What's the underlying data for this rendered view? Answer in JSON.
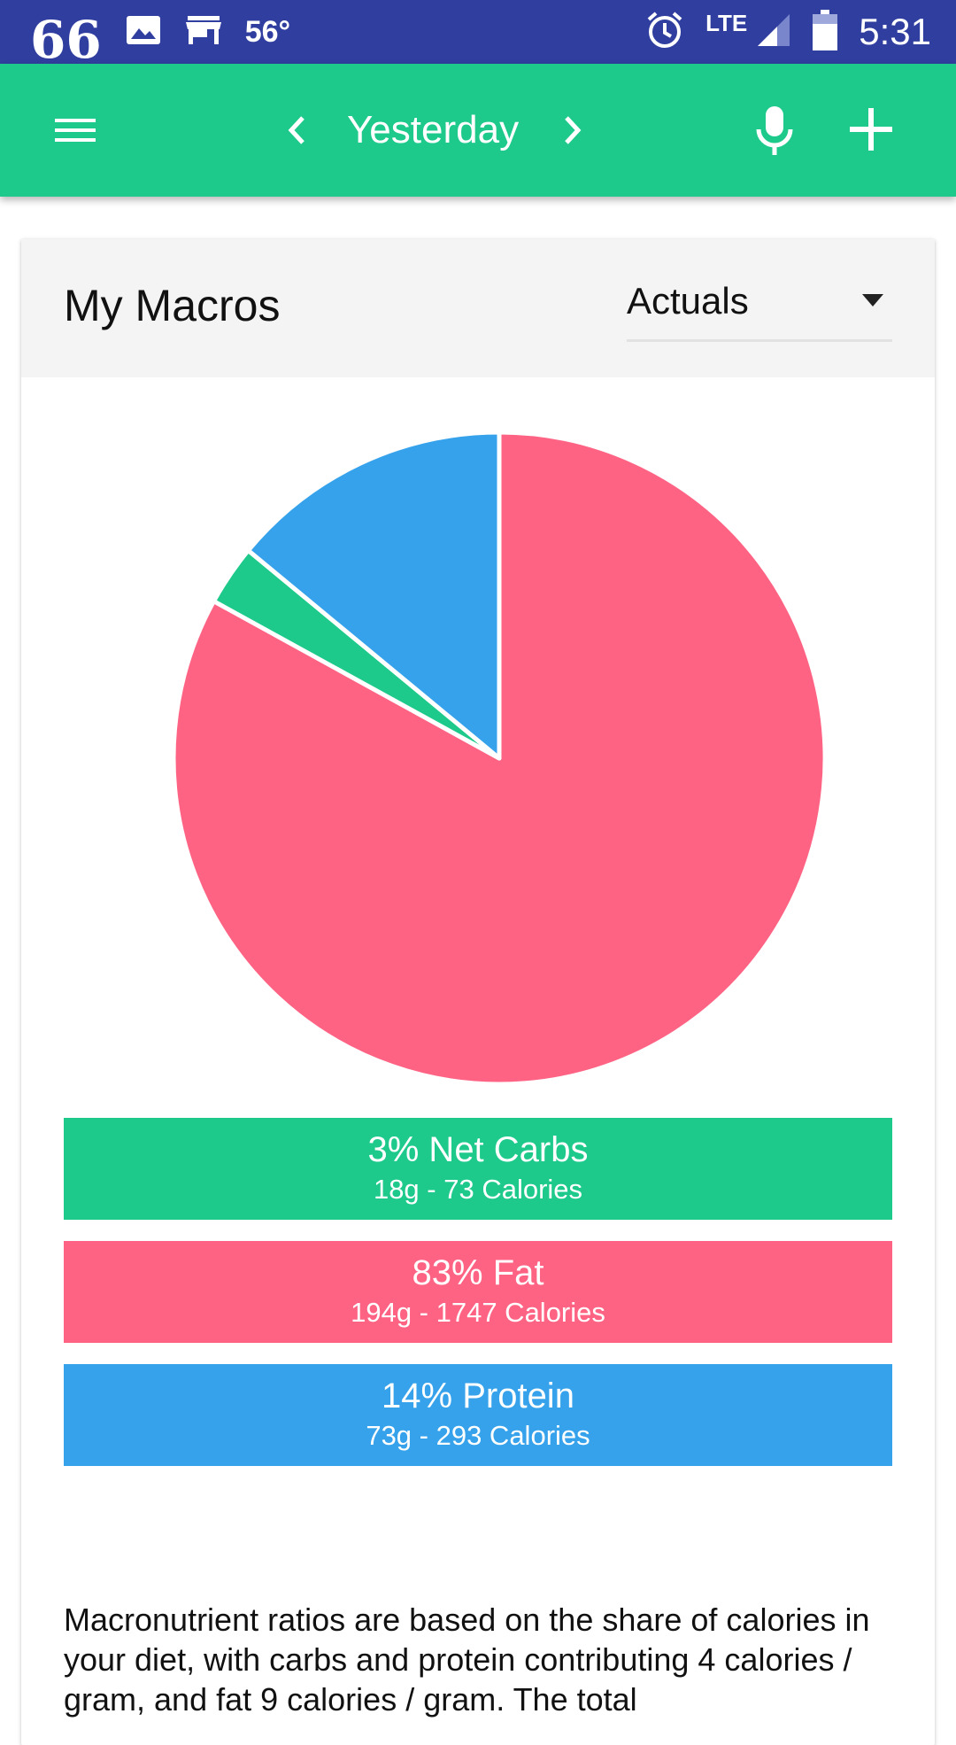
{
  "status_bar": {
    "left_glyph": "66",
    "temperature": "56°",
    "network": "LTE",
    "time": "5:31",
    "icons": [
      "quote-icon",
      "image-icon",
      "store-icon",
      "alarm-icon",
      "signal-icon",
      "battery-icon"
    ]
  },
  "app_bar": {
    "date_label": "Yesterday",
    "icons": [
      "menu-icon",
      "chevron-left-icon",
      "chevron-right-icon",
      "microphone-icon",
      "plus-icon"
    ]
  },
  "card": {
    "title": "My Macros",
    "view_select": {
      "selected": "Actuals"
    }
  },
  "chart_data": {
    "type": "pie",
    "slices": [
      {
        "label": "Fat",
        "percent": 83,
        "grams": 194,
        "calories": 1747,
        "color": "#FF6384"
      },
      {
        "label": "Net Carbs",
        "percent": 3,
        "grams": 18,
        "calories": 73,
        "color": "#1DCA8B"
      },
      {
        "label": "Protein",
        "percent": 14,
        "grams": 73,
        "calories": 293,
        "color": "#36A2EB"
      }
    ]
  },
  "macros": [
    {
      "main": "3% Net Carbs",
      "sub": "18g - 73 Calories",
      "color": "#1DCA8B"
    },
    {
      "main": "83% Fat",
      "sub": "194g - 1747 Calories",
      "color": "#FF6384"
    },
    {
      "main": "14% Protein",
      "sub": "73g - 293 Calories",
      "color": "#36A2EB"
    }
  ],
  "note": "Macronutrient ratios are based on the share of calories in your diet, with carbs and protein contributing 4 calories / gram, and fat 9 calories / gram. The total"
}
